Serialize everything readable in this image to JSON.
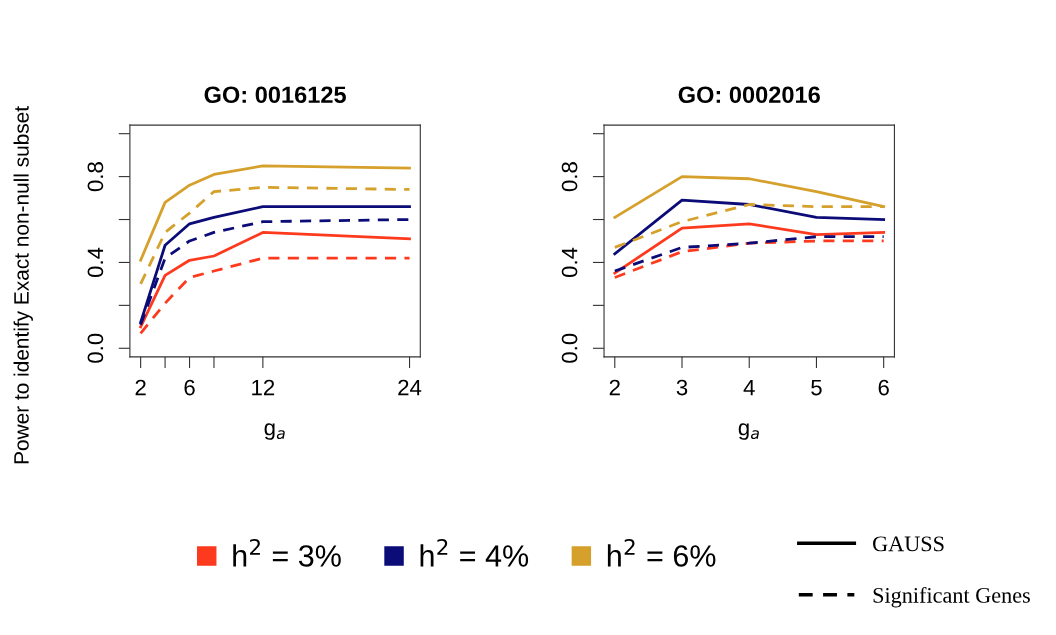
{
  "chart_data": [
    {
      "type": "line",
      "title": "GO: 0016125",
      "xlabel": "g$_{a}$",
      "ylabel": "Power to identify Exact non-null subset",
      "x": [
        2,
        4,
        6,
        8,
        12,
        24
      ],
      "xlim": [
        1.12,
        24.88
      ],
      "xticks": [
        2,
        {
          "value": 4,
          "label": null
        },
        6,
        {
          "value": 8,
          "label": null
        },
        12,
        24
      ],
      "ylim": [
        -0.04,
        1.04
      ],
      "yticks": [
        {
          "value": 0,
          "label": "0.0"
        },
        {
          "value": 0.2,
          "label": null
        },
        {
          "value": 0.4,
          "label": "0.4"
        },
        {
          "value": 0.6,
          "label": null
        },
        {
          "value": 0.8,
          "label": "0.8"
        },
        {
          "value": 1.0,
          "label": null
        }
      ],
      "grid": false,
      "legend": "bottom",
      "annotations": [
        "GAUSS",
        "Significant Genes"
      ],
      "series": [
        {
          "name": "h$^{2}$ = 3%",
          "color": "#fe3a1e",
          "line_style": "solid",
          "values": [
            0.1,
            0.34,
            0.41,
            0.43,
            0.54,
            0.51
          ]
        },
        {
          "name": "h$^{2}$ = 4%",
          "color": "#0b0c78",
          "line_style": "solid",
          "values": [
            0.12,
            0.48,
            0.58,
            0.61,
            0.66,
            0.66
          ]
        },
        {
          "name": "h$^{2}$ = 6%",
          "color": "#d5a02b",
          "line_style": "solid",
          "values": [
            0.41,
            0.68,
            0.76,
            0.81,
            0.85,
            0.84
          ]
        },
        {
          "color": "#fe3a1e",
          "line_style": "dashed",
          "values": [
            0.07,
            0.21,
            0.33,
            0.36,
            0.42,
            0.42
          ]
        },
        {
          "color": "#0b0c78",
          "line_style": "dashed",
          "values": [
            0.11,
            0.42,
            0.5,
            0.54,
            0.59,
            0.6
          ]
        },
        {
          "color": "#d5a02b",
          "line_style": "dashed",
          "values": [
            0.3,
            0.54,
            0.63,
            0.73,
            0.75,
            0.74
          ]
        }
      ]
    },
    {
      "type": "line",
      "title": "GO: 0002016",
      "xlabel": "g$_{a}$",
      "x": [
        2,
        3,
        4,
        5,
        6
      ],
      "xlim": [
        1.84,
        6.16
      ],
      "xticks": [
        2,
        3,
        4,
        5,
        6
      ],
      "ylim": [
        -0.04,
        1.04
      ],
      "yticks": [
        {
          "value": 0,
          "label": "0.0"
        },
        {
          "value": 0.2,
          "label": null
        },
        {
          "value": 0.4,
          "label": "0.4"
        },
        {
          "value": 0.6,
          "label": null
        },
        {
          "value": 0.8,
          "label": "0.8"
        },
        {
          "value": 1.0,
          "label": null
        }
      ],
      "grid": false,
      "series": [
        {
          "color": "#fe3a1e",
          "line_style": "solid",
          "values": [
            0.35,
            0.56,
            0.58,
            0.53,
            0.54
          ]
        },
        {
          "color": "#0b0c78",
          "line_style": "solid",
          "values": [
            0.44,
            0.69,
            0.67,
            0.61,
            0.6
          ]
        },
        {
          "color": "#d5a02b",
          "line_style": "solid",
          "values": [
            0.61,
            0.8,
            0.79,
            0.73,
            0.66
          ]
        },
        {
          "color": "#fe3a1e",
          "line_style": "dashed",
          "values": [
            0.33,
            0.45,
            0.49,
            0.5,
            0.5
          ]
        },
        {
          "color": "#0b0c78",
          "line_style": "dashed",
          "values": [
            0.36,
            0.47,
            0.49,
            0.52,
            0.52
          ]
        },
        {
          "color": "#d5a02b",
          "line_style": "dashed",
          "values": [
            0.47,
            0.59,
            0.67,
            0.66,
            0.66
          ]
        }
      ]
    }
  ]
}
